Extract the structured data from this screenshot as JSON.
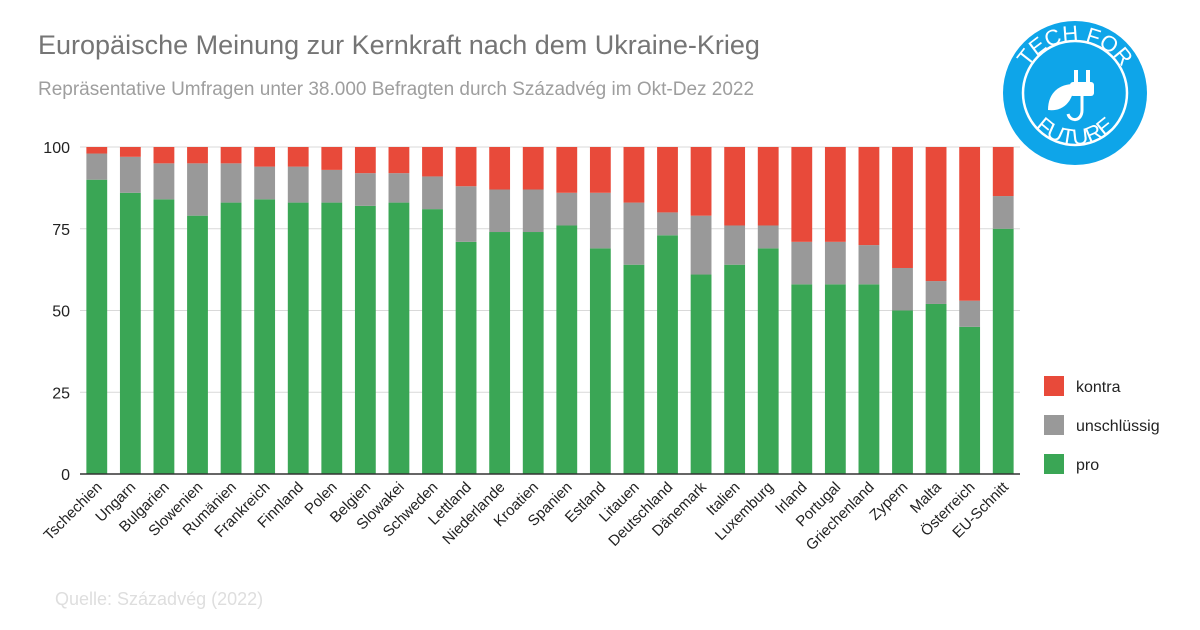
{
  "title": "Europäische Meinung zur Kernkraft nach dem Ukraine-Krieg",
  "subtitle": "Repräsentative Umfragen unter 38.000 Befragten durch Századvég im Okt-Dez 2022",
  "source": "Quelle:  Századvég (2022)",
  "logo": {
    "top_text": "TECH FOR",
    "bottom_text": "FUTURE",
    "color": "#0ea5e9"
  },
  "colors": {
    "pro": "#3aa655",
    "unschluessig": "#999999",
    "kontra": "#e84a3a"
  },
  "chart_data": {
    "type": "bar",
    "stacked": true,
    "title": "Europäische Meinung zur Kernkraft nach dem Ukraine-Krieg",
    "subtitle": "Repräsentative Umfragen unter 38.000 Befragten durch Századvég im Okt-Dez 2022",
    "ylim": [
      0,
      100
    ],
    "yticks": [
      0,
      25,
      50,
      75,
      100
    ],
    "grid": true,
    "legend_position": "right",
    "categories": [
      "Tschechien",
      "Ungarn",
      "Bulgarien",
      "Slowenien",
      "Rumänien",
      "Frankreich",
      "Finnland",
      "Polen",
      "Belgien",
      "Slowakei",
      "Schweden",
      "Lettland",
      "Niederlande",
      "Kroatien",
      "Spanien",
      "Estland",
      "Litauen",
      "Deutschland",
      "Dänemark",
      "Italien",
      "Luxemburg",
      "Irland",
      "Portugal",
      "Griechenland",
      "Zypern",
      "Malta",
      "Österreich",
      "EU-Schnitt"
    ],
    "series": [
      {
        "name": "pro",
        "color": "#3aa655",
        "values": [
          90,
          86,
          84,
          79,
          83,
          84,
          83,
          83,
          82,
          83,
          81,
          71,
          74,
          74,
          76,
          69,
          64,
          73,
          61,
          64,
          69,
          58,
          58,
          58,
          50,
          52,
          45,
          75
        ]
      },
      {
        "name": "unschlüssig",
        "color": "#999999",
        "values": [
          8,
          11,
          11,
          16,
          12,
          10,
          11,
          10,
          10,
          9,
          10,
          17,
          13,
          13,
          10,
          17,
          19,
          7,
          18,
          12,
          7,
          13,
          13,
          12,
          13,
          7,
          8,
          10
        ]
      },
      {
        "name": "kontra",
        "color": "#e84a3a",
        "values": [
          2,
          3,
          5,
          5,
          5,
          6,
          6,
          7,
          8,
          8,
          9,
          12,
          13,
          13,
          14,
          14,
          17,
          20,
          21,
          24,
          24,
          29,
          29,
          30,
          37,
          41,
          47,
          15
        ]
      }
    ]
  }
}
